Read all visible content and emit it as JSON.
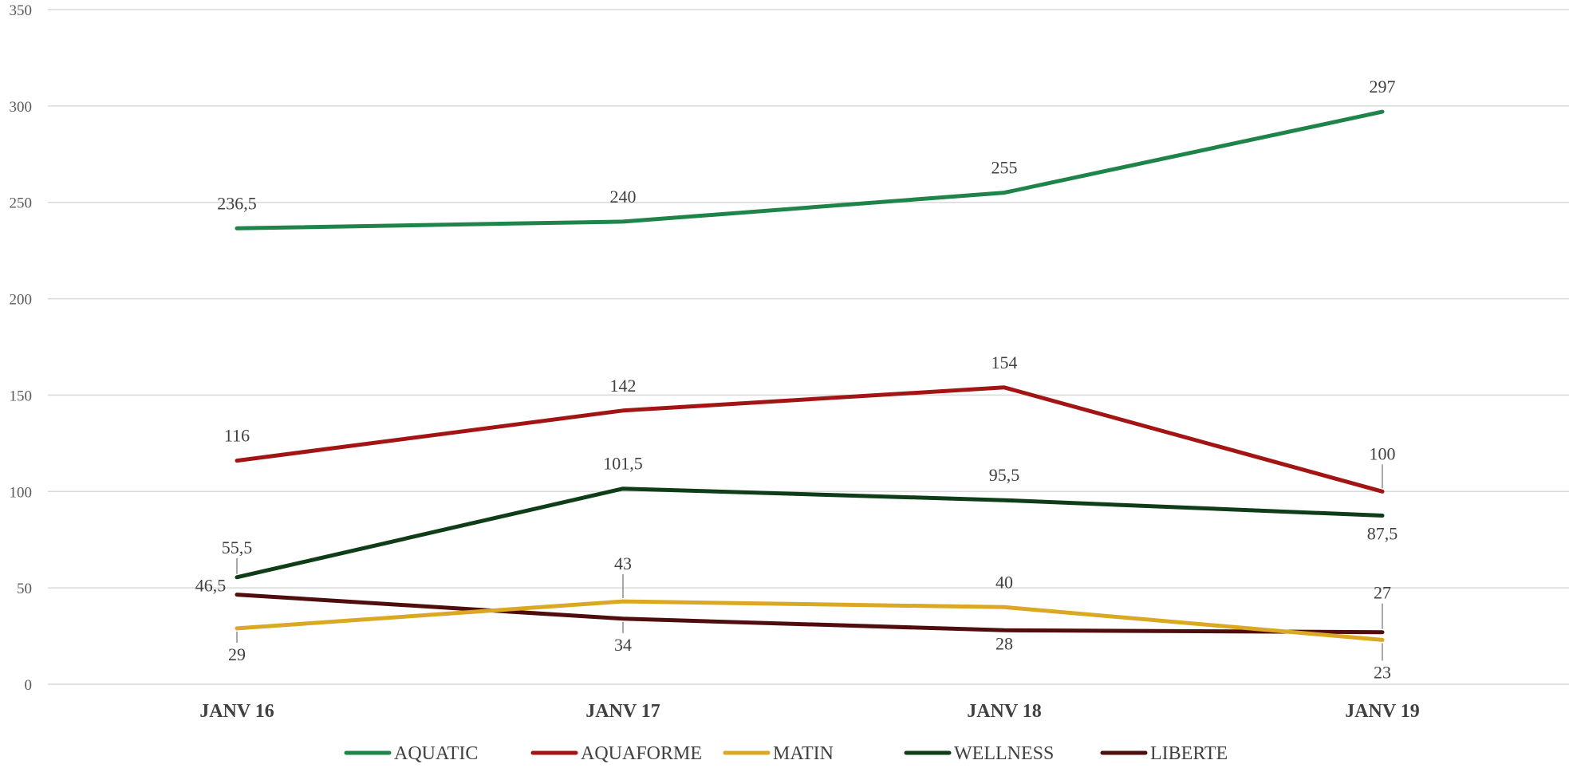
{
  "chart_data": {
    "type": "line",
    "categories": [
      "JANV 16",
      "JANV 17",
      "JANV 18",
      "JANV 19"
    ],
    "ylim": [
      0,
      350
    ],
    "yticks": [
      0,
      50,
      100,
      150,
      200,
      250,
      300,
      350
    ],
    "grid": true,
    "legend_position": "bottom",
    "series": [
      {
        "name": "AQUATIC",
        "color": "#1e8449",
        "values": [
          236.5,
          240,
          255,
          297
        ],
        "labels": [
          "236,5",
          "240",
          "255",
          "297"
        ]
      },
      {
        "name": "AQUAFORME",
        "color": "#a31515",
        "values": [
          116,
          142,
          154,
          100
        ],
        "labels": [
          "116",
          "142",
          "154",
          "100"
        ]
      },
      {
        "name": "MATIN",
        "color": "#dba824",
        "values": [
          29,
          43,
          40,
          23
        ],
        "labels": [
          "29",
          "43",
          "40",
          "23"
        ]
      },
      {
        "name": "WELLNESS",
        "color": "#0e3d18",
        "values": [
          55.5,
          101.5,
          95.5,
          87.5
        ],
        "labels": [
          "55,5",
          "101,5",
          "95,5",
          "87,5"
        ]
      },
      {
        "name": "LIBERTE",
        "color": "#4f0d0d",
        "values": [
          46.5,
          34,
          28,
          27
        ],
        "labels": [
          "46,5",
          "34",
          "28",
          "27"
        ]
      }
    ]
  }
}
